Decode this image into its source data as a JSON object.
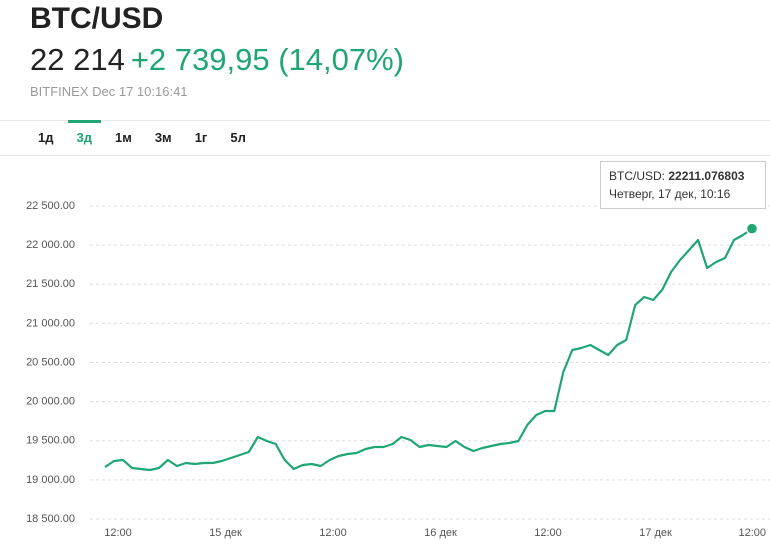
{
  "header": {
    "title": "BTC/USD",
    "price": "22 214",
    "change": "+2 739,95 (14,07%)",
    "source": "BITFINEX Dec 17 10:16:41"
  },
  "tabs": {
    "items": [
      "1д",
      "3д",
      "1м",
      "3м",
      "1г",
      "5л"
    ],
    "selected": 1
  },
  "chart_data": {
    "type": "line",
    "ylim": [
      18500,
      22500
    ],
    "yticks": [
      {
        "value": 18500,
        "label": "18 500.00"
      },
      {
        "value": 19000,
        "label": "19 000.00"
      },
      {
        "value": 19500,
        "label": "19 500.00"
      },
      {
        "value": 20000,
        "label": "20 000.00"
      },
      {
        "value": 20500,
        "label": "20 500.00"
      },
      {
        "value": 21000,
        "label": "21 000.00"
      },
      {
        "value": 21500,
        "label": "21 500.00"
      },
      {
        "value": 22000,
        "label": "22 000.00"
      },
      {
        "value": 22500,
        "label": "22 500.00"
      }
    ],
    "x_tick_labels": [
      "12:00",
      "15 дек",
      "12:00",
      "16 дек",
      "12:00",
      "17 дек",
      "12:00"
    ],
    "grid": true,
    "series": [
      {
        "name": "BTC/USD",
        "color": "#1fa673",
        "values": [
          19165,
          19241,
          19254,
          19152,
          19139,
          19126,
          19152,
          19254,
          19177,
          19216,
          19203,
          19216,
          19216,
          19241,
          19280,
          19318,
          19356,
          19548,
          19497,
          19459,
          19254,
          19139,
          19190,
          19203,
          19177,
          19254,
          19305,
          19331,
          19343,
          19395,
          19420,
          19420,
          19459,
          19548,
          19510,
          19420,
          19446,
          19433,
          19420,
          19497,
          19420,
          19369,
          19407,
          19433,
          19459,
          19471,
          19497,
          19701,
          19829,
          19880,
          19880,
          20379,
          20660,
          20685,
          20724,
          20660,
          20596,
          20724,
          20788,
          21235,
          21337,
          21299,
          21427,
          21657,
          21810,
          21938,
          22066,
          21708,
          21784,
          21836,
          22066,
          22130,
          22211.076803
        ]
      }
    ],
    "tooltip": {
      "label": "BTC/USD:",
      "value": "22211.076803",
      "date": "Четверг, 17 дек, 10:16"
    }
  }
}
